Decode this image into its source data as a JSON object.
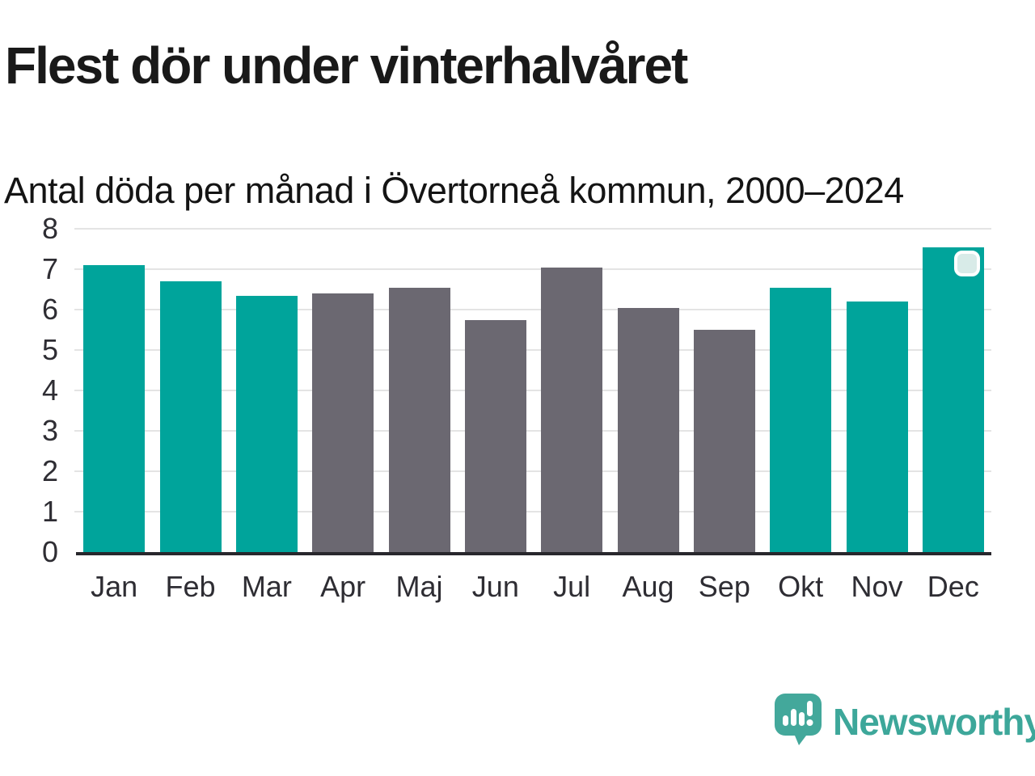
{
  "header": {
    "title": "Flest dör under vinterhalvåret",
    "subtitle": "Antal döda per månad i Övertorneå kommun, 2000–2024"
  },
  "chart_data": {
    "type": "bar",
    "categories": [
      "Jan",
      "Feb",
      "Mar",
      "Apr",
      "Maj",
      "Jun",
      "Jul",
      "Aug",
      "Sep",
      "Okt",
      "Nov",
      "Dec"
    ],
    "values": [
      7.1,
      6.7,
      6.35,
      6.4,
      6.55,
      5.75,
      7.05,
      6.05,
      5.5,
      6.55,
      6.2,
      7.55
    ],
    "title": "Flest dör under vinterhalvåret",
    "subtitle": "Antal döda per månad i Övertorneå kommun, 2000–2024",
    "xlabel": "",
    "ylabel": "",
    "ylim": [
      0,
      8
    ],
    "yticks": [
      0,
      1,
      2,
      3,
      4,
      5,
      6,
      7,
      8
    ],
    "grid": true,
    "legend": "none",
    "highlight_categories": [
      "Jan",
      "Feb",
      "Mar",
      "Okt",
      "Nov",
      "Dec"
    ],
    "colors": {
      "highlight_bar": "#00a49b",
      "default_bar": "#6b6871",
      "axis_line": "#28272c",
      "gridline": "#e4e4e4"
    },
    "marker": {
      "category": "Dec",
      "fill": "#d8ebe8",
      "border": "#ffffff"
    }
  },
  "footer": {
    "brand": "Newsworthy",
    "brand_color": "#3da79a",
    "logo_icon": "newsworthy-speech-bubble-chart-icon"
  }
}
